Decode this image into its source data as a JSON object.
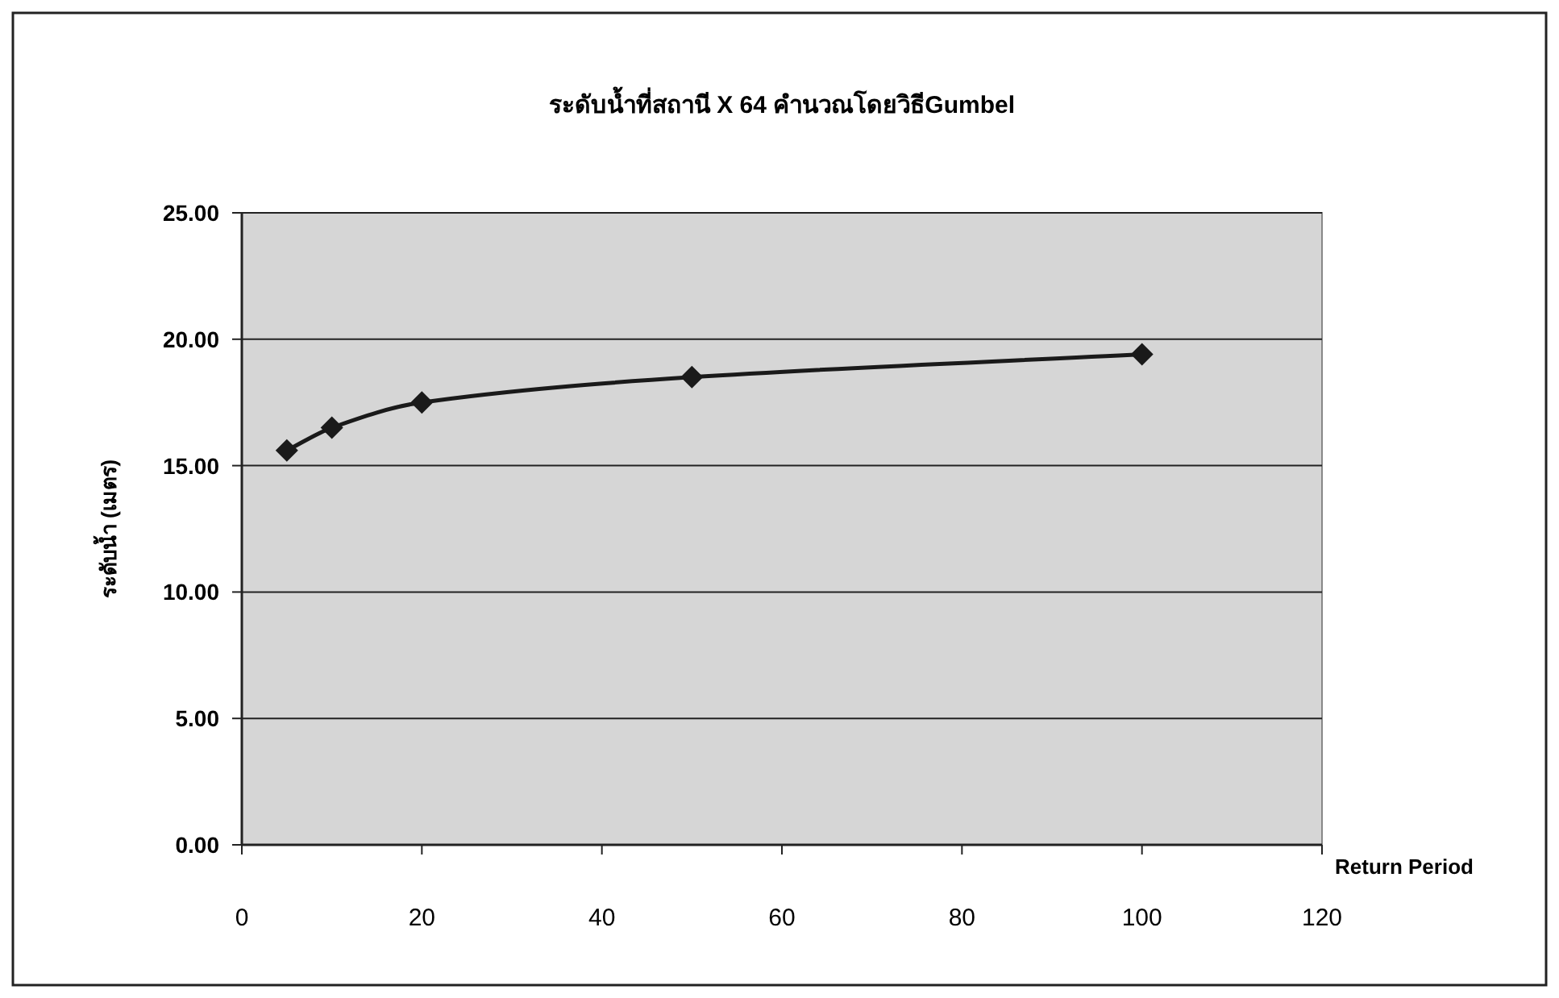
{
  "chart_data": {
    "type": "line",
    "title": "ระดับน้ำที่สถานี X 64 คำนวณโดยวิธีGumbel",
    "xlabel": "Return Period",
    "ylabel": "ระดับน้ำ (เมตร)",
    "x": [
      5,
      10,
      20,
      50,
      100
    ],
    "series": [
      {
        "color": "#1a1a1a",
        "values": [
          15.6,
          16.5,
          17.5,
          18.5,
          19.4
        ]
      }
    ],
    "xlim": [
      0,
      120
    ],
    "xticks": [
      0,
      20,
      40,
      60,
      80,
      100,
      120
    ],
    "ylim": [
      0,
      25
    ],
    "yticks": [
      {
        "value": 0,
        "label": "0.00"
      },
      {
        "value": 5,
        "label": "5.00"
      },
      {
        "value": 10,
        "label": "10.00"
      },
      {
        "value": 15,
        "label": "15.00"
      },
      {
        "value": 20,
        "label": "20.00"
      },
      {
        "value": 25,
        "label": "25.00"
      }
    ],
    "grid": "y",
    "marker": "diamond",
    "line_style": "solid"
  }
}
